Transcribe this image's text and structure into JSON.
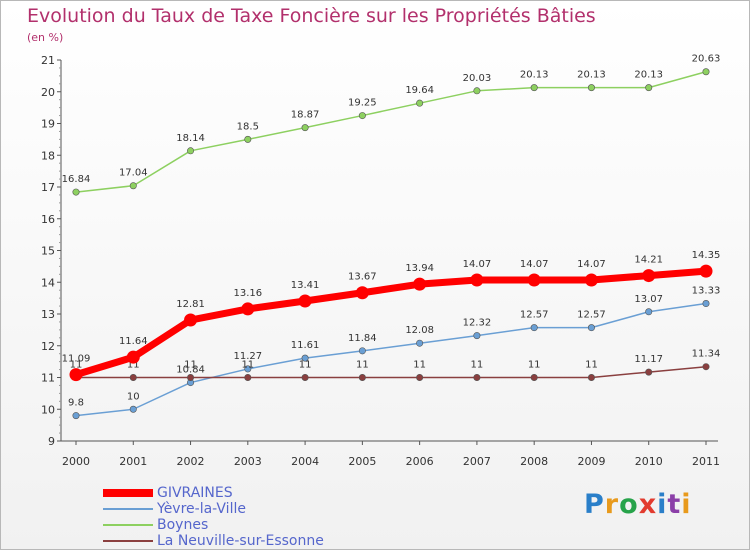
{
  "header": {
    "title": "Evolution du Taux de Taxe Foncière sur les Propriétés Bâties",
    "unit": "(en %)"
  },
  "logo": {
    "text": "Proxiti",
    "colors": [
      "#2a7fc9",
      "#e89a1c",
      "#27a34a",
      "#e23b2e",
      "#2a7fc9",
      "#8b3fa8",
      "#e89a1c"
    ]
  },
  "chart_data": {
    "type": "line",
    "title": "Evolution du Taux de Taxe Foncière sur les Propriétés Bâties",
    "ylabel": "(en %)",
    "xlabel": "",
    "x": [
      "2000",
      "2001",
      "2002",
      "2003",
      "2004",
      "2005",
      "2006",
      "2007",
      "2008",
      "2009",
      "2010",
      "2011"
    ],
    "ylim": [
      9,
      21
    ],
    "yticks": [
      "9",
      "10",
      "11",
      "12",
      "13",
      "14",
      "15",
      "16",
      "17",
      "18",
      "19",
      "20",
      "21"
    ],
    "grid": false,
    "legend_position": "bottom-left",
    "series": [
      {
        "name": "GIVRAINES",
        "color": "#ff0000",
        "highlight": true,
        "values": [
          11.09,
          11.64,
          12.81,
          13.16,
          13.41,
          13.67,
          13.94,
          14.07,
          14.07,
          14.07,
          14.21,
          14.35
        ],
        "labels": [
          "11.09",
          "11.64",
          "12.81",
          "13.16",
          "13.41",
          "13.67",
          "13.94",
          "14.07",
          "14.07",
          "14.07",
          "14.21",
          "14.35"
        ]
      },
      {
        "name": "Yèvre-la-Ville",
        "color": "#6a9fd4",
        "values": [
          9.8,
          10,
          10.84,
          11.27,
          11.61,
          11.84,
          12.08,
          12.32,
          12.57,
          12.57,
          13.07,
          13.33
        ],
        "labels": [
          "9.8",
          "10",
          "10.84",
          "11.27",
          "11.61",
          "11.84",
          "12.08",
          "12.32",
          "12.57",
          "12.57",
          "13.07",
          "13.33"
        ]
      },
      {
        "name": "Boynes",
        "color": "#8dd060",
        "values": [
          16.84,
          17.04,
          18.14,
          18.5,
          18.87,
          19.25,
          19.64,
          20.03,
          20.13,
          20.13,
          20.13,
          20.63
        ],
        "labels": [
          "16.84",
          "17.04",
          "18.14",
          "18.5",
          "18.87",
          "19.25",
          "19.64",
          "20.03",
          "20.13",
          "20.13",
          "20.13",
          "20.63"
        ]
      },
      {
        "name": "La Neuville-sur-Essonne",
        "color": "#8a3f3f",
        "values": [
          11,
          11,
          11,
          11,
          11,
          11,
          11,
          11,
          11,
          11,
          11.17,
          11.34
        ],
        "labels": [
          "11",
          "11",
          "11",
          "11",
          "11",
          "11",
          "11",
          "11",
          "11",
          "11",
          "11.17",
          "11.34"
        ]
      }
    ]
  }
}
